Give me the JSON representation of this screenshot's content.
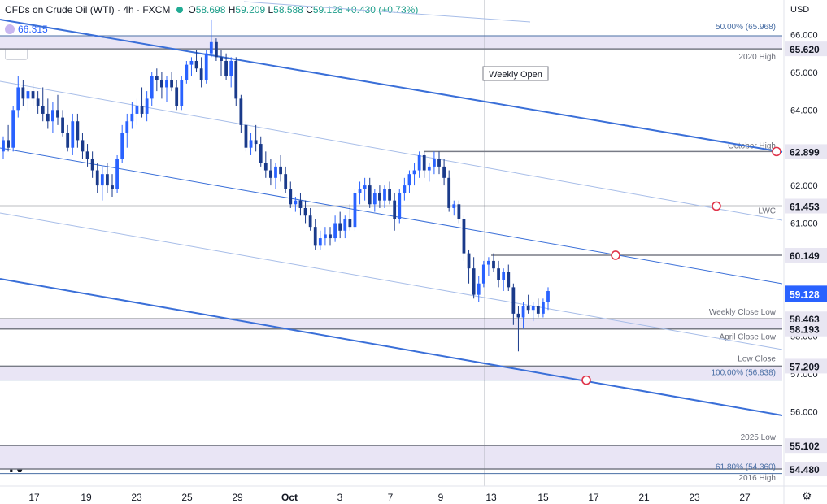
{
  "header": {
    "title": "CFDs on Crude Oil (WTI) · 4h · FXCM",
    "o_label": "O",
    "o_value": "58.698",
    "h_label": "H",
    "h_value": "59.209",
    "l_label": "L",
    "l_value": "58.588",
    "c_label": "C",
    "c_value": "59.128",
    "change": "+0.430 (+0.73%)",
    "indicator_value": "66.315",
    "currency": "USD",
    "collapse_icon": "chevron-up-icon",
    "settings_icon": "gear-icon",
    "logo_text": "TV"
  },
  "colors": {
    "up": "#2962ff",
    "down": "#1a3a8a",
    "channel": "#3a6fd8",
    "channel_light": "#a7bde8",
    "level": "#787b86",
    "zone": "#e9e5f5",
    "marker": "#e0354b",
    "badge_dark": "#131722"
  },
  "chart_data": {
    "type": "candlestick",
    "y_axis": {
      "min": 54.2,
      "max": 66.45,
      "ticks": [
        "66.000",
        "65.000",
        "64.000",
        "62.000",
        "61.000",
        "58.000",
        "57.000",
        "56.000"
      ],
      "tick_values": [
        66,
        65,
        64,
        62,
        61,
        58,
        57,
        56
      ]
    },
    "x_axis": {
      "labels": [
        "17",
        "19",
        "23",
        "25",
        "29",
        "Oct",
        "3",
        "7",
        "9",
        "13",
        "15",
        "17",
        "21",
        "23",
        "27"
      ]
    },
    "levels": [
      {
        "price": 65.968,
        "label": "50.00% (65.968)",
        "color": "#787b86",
        "badge": ""
      },
      {
        "price": 65.62,
        "label": "2020 High",
        "badge": "65.620"
      },
      {
        "price": 62.899,
        "label": "October High",
        "badge": "62.899"
      },
      {
        "price": 61.453,
        "label": "LWC",
        "badge": "61.453"
      },
      {
        "price": 60.149,
        "label": "",
        "badge": "60.149"
      },
      {
        "price": 58.463,
        "label": "Weekly Close Low",
        "badge": "58.463"
      },
      {
        "price": 58.193,
        "label": "April Close Low",
        "badge": "58.193"
      },
      {
        "price": 57.209,
        "label": "Low Close",
        "badge": "57.209"
      },
      {
        "price": 56.838,
        "label": "100.00% (56.838)",
        "badge": ""
      },
      {
        "price": 55.102,
        "label": "2025 Low",
        "badge": "55.102"
      },
      {
        "price": 54.48,
        "label": "2016 High",
        "badge": "54.480"
      },
      {
        "price": 54.36,
        "label": "61.80% (54.360)",
        "badge": ""
      }
    ],
    "current_price": "59.128",
    "weekly_open_label": "Weekly Open",
    "candles": [
      [
        62.9,
        63.3,
        62.7,
        63.2
      ],
      [
        63.2,
        63.6,
        62.9,
        63.0
      ],
      [
        63.0,
        64.1,
        62.9,
        64.0
      ],
      [
        64.0,
        64.9,
        63.8,
        64.6
      ],
      [
        64.6,
        64.8,
        64.1,
        64.3
      ],
      [
        64.3,
        64.6,
        64.0,
        64.5
      ],
      [
        64.5,
        64.7,
        64.1,
        64.3
      ],
      [
        64.3,
        64.5,
        63.9,
        64.1
      ],
      [
        64.1,
        64.6,
        63.7,
        63.9
      ],
      [
        63.9,
        64.3,
        63.5,
        63.7
      ],
      [
        63.7,
        64.2,
        63.4,
        64.0
      ],
      [
        64.0,
        64.4,
        63.6,
        63.8
      ],
      [
        63.8,
        64.0,
        63.3,
        63.4
      ],
      [
        63.4,
        63.6,
        62.9,
        63.0
      ],
      [
        63.0,
        63.9,
        62.8,
        63.7
      ],
      [
        63.7,
        63.9,
        63.0,
        63.2
      ],
      [
        63.2,
        63.4,
        62.7,
        62.9
      ],
      [
        62.9,
        63.1,
        62.5,
        62.7
      ],
      [
        62.7,
        62.9,
        62.2,
        62.4
      ],
      [
        62.4,
        62.6,
        61.8,
        62.0
      ],
      [
        62.0,
        62.5,
        61.6,
        62.3
      ],
      [
        62.3,
        62.6,
        61.8,
        62.0
      ],
      [
        62.0,
        62.3,
        61.7,
        61.9
      ],
      [
        61.9,
        62.8,
        61.8,
        62.7
      ],
      [
        62.7,
        63.6,
        62.6,
        63.4
      ],
      [
        63.4,
        63.9,
        63.0,
        63.7
      ],
      [
        63.7,
        64.2,
        63.5,
        63.9
      ],
      [
        63.9,
        64.3,
        63.6,
        64.1
      ],
      [
        64.1,
        64.6,
        63.8,
        63.9
      ],
      [
        63.9,
        64.5,
        63.7,
        64.3
      ],
      [
        64.3,
        65.0,
        64.1,
        64.9
      ],
      [
        64.9,
        65.1,
        64.5,
        64.8
      ],
      [
        64.8,
        65.0,
        64.3,
        64.6
      ],
      [
        64.6,
        64.9,
        64.2,
        64.8
      ],
      [
        64.8,
        65.0,
        64.5,
        64.6
      ],
      [
        64.6,
        64.8,
        64.0,
        64.1
      ],
      [
        64.1,
        64.9,
        64.0,
        64.8
      ],
      [
        64.8,
        65.3,
        64.7,
        65.2
      ],
      [
        65.2,
        65.4,
        64.9,
        65.3
      ],
      [
        65.3,
        65.6,
        65.0,
        65.1
      ],
      [
        65.1,
        65.4,
        64.6,
        64.8
      ],
      [
        64.8,
        65.6,
        64.7,
        65.5
      ],
      [
        65.5,
        66.4,
        65.4,
        65.8
      ],
      [
        65.8,
        65.9,
        65.3,
        65.4
      ],
      [
        65.4,
        65.6,
        64.9,
        65.3
      ],
      [
        65.3,
        65.5,
        64.8,
        64.9
      ],
      [
        64.9,
        65.4,
        64.6,
        65.3
      ],
      [
        65.3,
        65.4,
        64.1,
        64.3
      ],
      [
        64.3,
        64.4,
        63.4,
        63.6
      ],
      [
        63.6,
        63.7,
        62.9,
        63.0
      ],
      [
        63.0,
        63.4,
        62.8,
        63.2
      ],
      [
        63.2,
        63.6,
        62.9,
        63.1
      ],
      [
        63.1,
        63.3,
        62.5,
        62.6
      ],
      [
        62.6,
        62.9,
        62.2,
        62.4
      ],
      [
        62.4,
        62.7,
        62.0,
        62.2
      ],
      [
        62.2,
        62.6,
        61.9,
        62.5
      ],
      [
        62.5,
        62.8,
        62.1,
        62.3
      ],
      [
        62.3,
        62.5,
        61.8,
        61.9
      ],
      [
        61.9,
        62.1,
        61.4,
        61.5
      ],
      [
        61.5,
        61.7,
        61.3,
        61.6
      ],
      [
        61.6,
        61.8,
        61.2,
        61.4
      ],
      [
        61.4,
        61.6,
        61.0,
        61.2
      ],
      [
        61.2,
        61.4,
        60.8,
        60.9
      ],
      [
        60.9,
        61.1,
        60.3,
        60.4
      ],
      [
        60.4,
        60.8,
        60.3,
        60.6
      ],
      [
        60.6,
        60.9,
        60.4,
        60.7
      ],
      [
        60.7,
        60.9,
        60.4,
        60.6
      ],
      [
        60.6,
        61.2,
        60.5,
        61.0
      ],
      [
        61.0,
        61.3,
        60.6,
        60.8
      ],
      [
        60.8,
        61.2,
        60.6,
        61.1
      ],
      [
        61.1,
        61.5,
        60.8,
        60.9
      ],
      [
        60.9,
        61.9,
        60.8,
        61.8
      ],
      [
        61.8,
        62.1,
        61.5,
        61.9
      ],
      [
        61.9,
        62.2,
        61.6,
        62.0
      ],
      [
        62.0,
        62.2,
        61.4,
        61.5
      ],
      [
        61.5,
        61.9,
        61.3,
        61.8
      ],
      [
        61.8,
        62.0,
        61.4,
        61.6
      ],
      [
        61.6,
        62.0,
        61.4,
        61.9
      ],
      [
        61.9,
        62.1,
        61.5,
        61.6
      ],
      [
        61.6,
        61.8,
        60.8,
        61.1
      ],
      [
        61.1,
        61.9,
        61.0,
        61.8
      ],
      [
        61.8,
        62.2,
        61.6,
        62.0
      ],
      [
        62.0,
        62.4,
        61.8,
        62.3
      ],
      [
        62.3,
        62.6,
        62.0,
        62.4
      ],
      [
        62.4,
        62.9,
        62.2,
        62.8
      ],
      [
        62.8,
        62.9,
        62.2,
        62.4
      ],
      [
        62.4,
        62.6,
        62.1,
        62.5
      ],
      [
        62.5,
        62.9,
        62.3,
        62.7
      ],
      [
        62.7,
        62.9,
        62.3,
        62.5
      ],
      [
        62.5,
        62.7,
        62.0,
        62.2
      ],
      [
        62.2,
        62.4,
        61.3,
        61.4
      ],
      [
        61.4,
        61.6,
        61.2,
        61.5
      ],
      [
        61.5,
        61.6,
        61.0,
        61.1
      ],
      [
        61.1,
        61.2,
        60.0,
        60.2
      ],
      [
        60.2,
        60.3,
        59.4,
        59.8
      ],
      [
        59.8,
        60.1,
        59.0,
        59.1
      ],
      [
        59.1,
        59.6,
        58.9,
        59.4
      ],
      [
        59.4,
        60.0,
        59.3,
        59.9
      ],
      [
        59.9,
        60.1,
        59.6,
        60.0
      ],
      [
        60.0,
        60.2,
        59.7,
        59.8
      ],
      [
        59.8,
        60.0,
        59.3,
        59.5
      ],
      [
        59.5,
        59.8,
        59.2,
        59.7
      ],
      [
        59.7,
        59.9,
        59.2,
        59.3
      ],
      [
        59.3,
        59.4,
        58.3,
        58.6
      ],
      [
        58.6,
        58.8,
        57.6,
        58.5
      ],
      [
        58.5,
        58.9,
        58.2,
        58.8
      ],
      [
        58.8,
        59.1,
        58.6,
        58.7
      ],
      [
        58.7,
        58.9,
        58.4,
        58.8
      ],
      [
        58.8,
        59.0,
        58.5,
        58.6
      ],
      [
        58.6,
        59.0,
        58.5,
        58.9
      ],
      [
        58.9,
        59.3,
        58.7,
        59.2
      ]
    ]
  }
}
